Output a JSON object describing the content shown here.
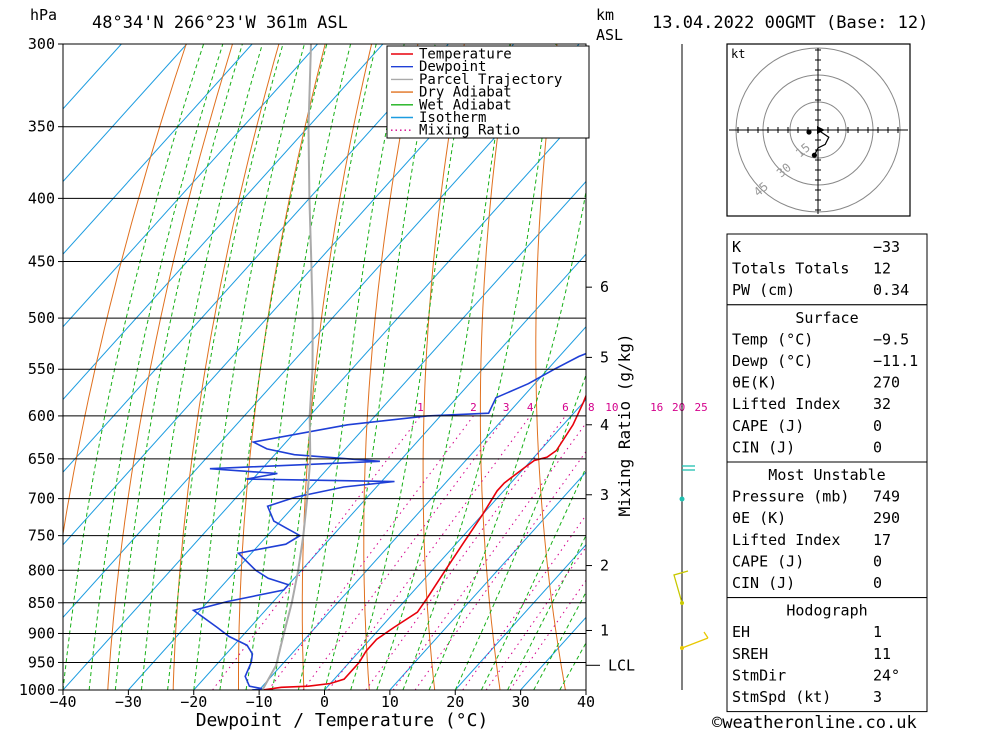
{
  "header": {
    "hpa_unit": "hPa",
    "location": "48°34'N  266°23'W  361m  ASL",
    "km_unit": "km",
    "asl_unit": "ASL",
    "datetime": "13.04.2022  00GMT  (Base: 12)"
  },
  "chart_data": {
    "type": "skew-t",
    "title": "48°34'N  266°23'W  361m  ASL",
    "xlabel": "Dewpoint / Temperature (°C)",
    "ylabel": "hPa",
    "xlim": [
      -40,
      40
    ],
    "ylim": [
      1000,
      300
    ],
    "x_ticks": [
      "-40",
      "-30",
      "-20",
      "-10",
      "0",
      "10",
      "20",
      "30",
      "40"
    ],
    "pressure_levels": [
      "300",
      "350",
      "400",
      "450",
      "500",
      "550",
      "600",
      "650",
      "700",
      "750",
      "800",
      "850",
      "900",
      "950",
      "1000"
    ],
    "km_ticks": [
      {
        "km": "1",
        "p": 895
      },
      {
        "km": "2",
        "p": 793
      },
      {
        "km": "3",
        "p": 695
      },
      {
        "km": "4",
        "p": 610
      },
      {
        "km": "5",
        "p": 538
      },
      {
        "km": "6",
        "p": 472
      }
    ],
    "lcl": {
      "label": "LCL",
      "p": 955
    },
    "mixing_ratio_axis_label": "Mixing Ratio (g/kg)",
    "mixing_ratios": [
      "1",
      "2",
      "3",
      "4",
      "6",
      "8",
      "10",
      "16",
      "20",
      "25"
    ],
    "legend": [
      "Temperature",
      "Dewpoint",
      "Parcel Trajectory",
      "Dry Adiabat",
      "Wet Adiabat",
      "Isotherm",
      "Mixing Ratio"
    ],
    "colors": {
      "temperature": "#e8000b",
      "dewpoint": "#1f3fd6",
      "parcel": "#aaaaaa",
      "dry_adiabat": "#e0701e",
      "wet_adiabat": "#18b018",
      "isotherm": "#1c9ce0",
      "mixing_ratio": "#d4008c"
    },
    "series": [
      {
        "name": "Temperature",
        "points": [
          [
            -9.5,
            1000
          ],
          [
            -7,
            995
          ],
          [
            -3,
            993
          ],
          [
            0,
            988
          ],
          [
            1.5,
            980
          ],
          [
            1.5,
            950
          ],
          [
            1,
            930
          ],
          [
            1,
            910
          ],
          [
            2,
            890
          ],
          [
            3.5,
            865
          ],
          [
            3,
            840
          ],
          [
            2,
            800
          ],
          [
            1,
            760
          ],
          [
            0,
            720
          ],
          [
            -1,
            690
          ],
          [
            -1,
            680
          ],
          [
            -0.5,
            670
          ],
          [
            0,
            660
          ],
          [
            0.5,
            652
          ],
          [
            2,
            648
          ],
          [
            2.5,
            640
          ],
          [
            1.5,
            610
          ],
          [
            0,
            585
          ],
          [
            -2.5,
            550
          ],
          [
            -3.5,
            525
          ],
          [
            -3,
            500
          ],
          [
            -4,
            480
          ],
          [
            -6,
            450
          ],
          [
            -9,
            410
          ]
        ]
      },
      {
        "name": "Dewpoint",
        "points": [
          [
            -11.1,
            1000
          ],
          [
            -9.5,
            998
          ],
          [
            -12,
            993
          ],
          [
            -14,
            975
          ],
          [
            -15,
            950
          ],
          [
            -16,
            935
          ],
          [
            -18,
            920
          ],
          [
            -22,
            905
          ],
          [
            -25,
            890
          ],
          [
            -31,
            862
          ],
          [
            -27,
            848
          ],
          [
            -20,
            830
          ],
          [
            -20,
            822
          ],
          [
            -24,
            812
          ],
          [
            -27,
            800
          ],
          [
            -32,
            775
          ],
          [
            -26,
            762
          ],
          [
            -25,
            750
          ],
          [
            -28,
            740
          ],
          [
            -31,
            730
          ],
          [
            -34,
            710
          ],
          [
            -31,
            698
          ],
          [
            -25,
            685
          ],
          [
            -18,
            678
          ],
          [
            -41,
            675
          ],
          [
            -37,
            668
          ],
          [
            -48,
            662
          ],
          [
            -23,
            653
          ],
          [
            -37,
            645
          ],
          [
            -42,
            638
          ],
          [
            -45,
            630
          ],
          [
            -33,
            610
          ],
          [
            -22,
            600
          ],
          [
            -13,
            597
          ],
          [
            -14,
            580
          ],
          [
            -11,
            565
          ],
          [
            -9,
            550
          ],
          [
            -7,
            537
          ],
          [
            -4,
            525
          ],
          [
            -4,
            505
          ],
          [
            -7,
            490
          ],
          [
            -10,
            470
          ],
          [
            -14,
            450
          ],
          [
            -19,
            425
          ],
          [
            -23,
            410
          ]
        ]
      },
      {
        "name": "Parcel Trajectory",
        "points": [
          [
            -9.5,
            1000
          ],
          [
            -10.8,
            955
          ],
          [
            -14,
            900
          ],
          [
            -17,
            850
          ],
          [
            -20.5,
            800
          ],
          [
            -24.5,
            750
          ],
          [
            -29,
            700
          ],
          [
            -34,
            650
          ],
          [
            -40,
            600
          ],
          [
            -46,
            550
          ],
          [
            -53,
            500
          ],
          [
            -61,
            450
          ],
          [
            -70,
            400
          ],
          [
            -80,
            350
          ],
          [
            -91,
            300
          ]
        ]
      }
    ]
  },
  "hodograph": {
    "unit_label": "kt",
    "ring_labels": [
      "15",
      "30",
      "45"
    ],
    "points": [
      [
        0,
        0
      ],
      [
        3,
        -2
      ],
      [
        2,
        -4
      ],
      [
        0,
        -5
      ],
      [
        -1,
        -7
      ]
    ]
  },
  "indices": {
    "rows": [
      {
        "label": "K",
        "value": "-33"
      },
      {
        "label": "Totals Totals",
        "value": "12"
      },
      {
        "label": "PW (cm)",
        "value": "0.34"
      }
    ]
  },
  "surface": {
    "title": "Surface",
    "rows": [
      {
        "label": "Temp (°C)",
        "value": "-9.5"
      },
      {
        "label": "Dewp (°C)",
        "value": "-11.1"
      },
      {
        "label": "θE(K)",
        "value": "270"
      },
      {
        "label": "Lifted Index",
        "value": "32"
      },
      {
        "label": "CAPE (J)",
        "value": "0"
      },
      {
        "label": "CIN (J)",
        "value": "0"
      }
    ]
  },
  "most_unstable": {
    "title": "Most Unstable",
    "rows": [
      {
        "label": "Pressure (mb)",
        "value": "749"
      },
      {
        "label": "θE (K)",
        "value": "290"
      },
      {
        "label": "Lifted Index",
        "value": "17"
      },
      {
        "label": "CAPE (J)",
        "value": "0"
      },
      {
        "label": "CIN (J)",
        "value": "0"
      }
    ]
  },
  "hodograph_params": {
    "title": "Hodograph",
    "rows": [
      {
        "label": "EH",
        "value": "1"
      },
      {
        "label": "SREH",
        "value": "11"
      },
      {
        "label": "StmDir",
        "value": "24°"
      },
      {
        "label": "StmSpd (kt)",
        "value": "3"
      }
    ]
  },
  "footer": {
    "copyright": "©weatheronline.co.uk"
  }
}
